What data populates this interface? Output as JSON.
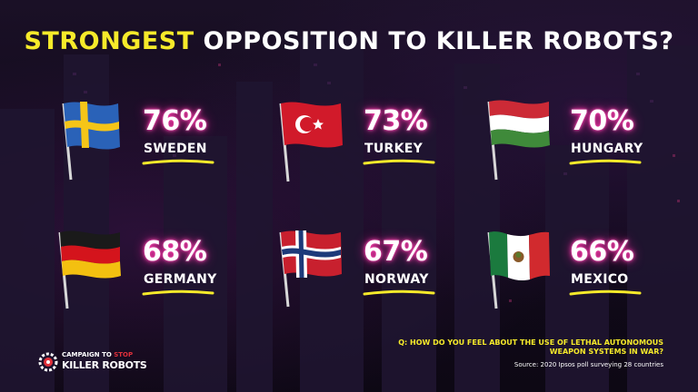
{
  "title": {
    "highlight": "STRONGEST",
    "rest": " OPPOSITION TO KILLER ROBOTS?"
  },
  "colors": {
    "highlight": "#f6ea2a",
    "glow": "#ff3fae",
    "background": "#120a1c"
  },
  "countries": [
    {
      "percent": "76%",
      "name": "SWEDEN",
      "flag": "sweden-flag-icon"
    },
    {
      "percent": "73%",
      "name": "TURKEY",
      "flag": "turkey-flag-icon"
    },
    {
      "percent": "70%",
      "name": "HUNGARY",
      "flag": "hungary-flag-icon"
    },
    {
      "percent": "68%",
      "name": "GERMANY",
      "flag": "germany-flag-icon"
    },
    {
      "percent": "67%",
      "name": "NORWAY",
      "flag": "norway-flag-icon"
    },
    {
      "percent": "66%",
      "name": "MEXICO",
      "flag": "mexico-flag-icon"
    }
  ],
  "footer": {
    "question": "Q: HOW DO YOU FEEL ABOUT THE USE OF LETHAL AUTONOMOUS WEAPON SYSTEMS IN WAR?",
    "source": "Source: 2020 Ipsos poll surveying 28 countries"
  },
  "logo": {
    "line1a": "CAMPAIGN TO ",
    "line1b": "STOP",
    "line2": "KILLER ROBOTS",
    "icon": "gear-icon"
  }
}
